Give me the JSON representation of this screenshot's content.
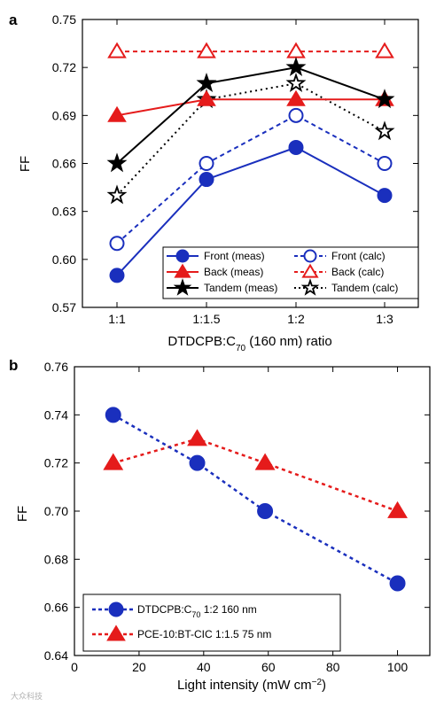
{
  "colors": {
    "blue": "#1a2fbd",
    "red": "#e51b1b",
    "black": "#000000"
  },
  "watermark": "大众科技",
  "chart_data": [
    {
      "panel": "a",
      "type": "line",
      "xlabel_parts": [
        "DTDCPB:C",
        "70",
        " (160 nm) ratio"
      ],
      "ylabel": "FF",
      "categories": [
        "1:1",
        "1:1.5",
        "1:2",
        "1:3"
      ],
      "ylim": [
        0.57,
        0.75
      ],
      "yticks": [
        "0.57",
        "0.60",
        "0.63",
        "0.66",
        "0.69",
        "0.72",
        "0.75"
      ],
      "legend_position": "bottom-right",
      "series": [
        {
          "name": "Front (meas)",
          "color": "blue",
          "marker": "circle",
          "filled": true,
          "dash": false,
          "values": [
            0.59,
            0.65,
            0.67,
            0.64
          ]
        },
        {
          "name": "Back (meas)",
          "color": "red",
          "marker": "triangle",
          "filled": true,
          "dash": false,
          "values": [
            0.69,
            0.7,
            0.7,
            0.7
          ]
        },
        {
          "name": "Tandem (meas)",
          "color": "black",
          "marker": "star",
          "filled": true,
          "dash": false,
          "values": [
            0.66,
            0.71,
            0.72,
            0.7
          ]
        },
        {
          "name": "Front (calc)",
          "color": "blue",
          "marker": "circle",
          "filled": false,
          "dash": true,
          "values": [
            0.61,
            0.66,
            0.69,
            0.66
          ]
        },
        {
          "name": "Back (calc)",
          "color": "red",
          "marker": "triangle",
          "filled": false,
          "dash": true,
          "values": [
            0.73,
            0.73,
            0.73,
            0.73
          ]
        },
        {
          "name": "Tandem (calc)",
          "color": "black",
          "marker": "star",
          "filled": false,
          "dash": true,
          "values": [
            0.64,
            0.7,
            0.71,
            0.68
          ]
        }
      ]
    },
    {
      "panel": "b",
      "type": "line",
      "xlabel_parts": [
        "Light intensity (mW cm",
        "−2",
        ")"
      ],
      "ylabel": "FF",
      "xlim": [
        0,
        110
      ],
      "xticks": [
        "0",
        "20",
        "40",
        "60",
        "80",
        "100"
      ],
      "ylim": [
        0.64,
        0.76
      ],
      "yticks": [
        "0.64",
        "0.66",
        "0.68",
        "0.70",
        "0.72",
        "0.74",
        "0.76"
      ],
      "legend_position": "bottom-left",
      "series": [
        {
          "name_parts": [
            "DTDCPB:C",
            "70",
            " 1:2 160 nm"
          ],
          "color": "blue",
          "marker": "circle",
          "filled": true,
          "dash": true,
          "x": [
            12,
            38,
            59,
            100
          ],
          "y": [
            0.74,
            0.72,
            0.7,
            0.67
          ]
        },
        {
          "name_parts": [
            "PCE-10:BT-CIC 1:1.5 75 nm",
            "",
            ""
          ],
          "color": "red",
          "marker": "triangle",
          "filled": true,
          "dash": true,
          "x": [
            12,
            38,
            59,
            100
          ],
          "y": [
            0.72,
            0.73,
            0.72,
            0.7
          ]
        }
      ]
    }
  ]
}
